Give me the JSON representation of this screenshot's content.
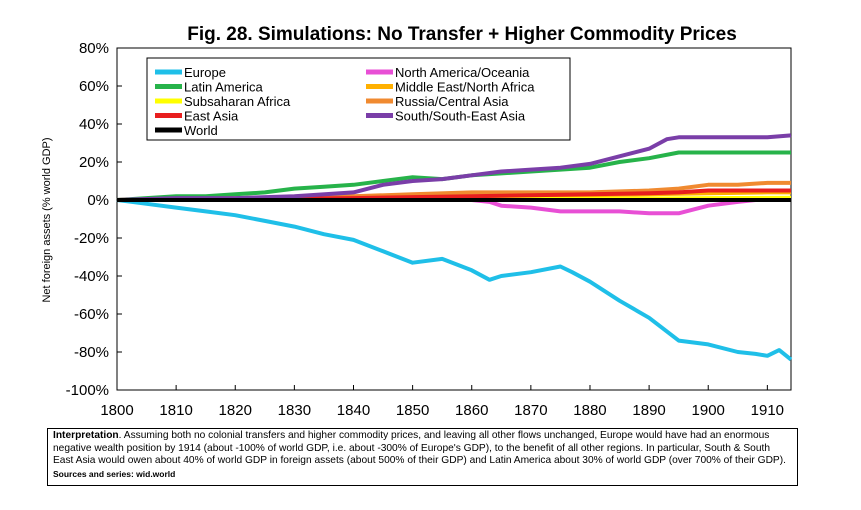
{
  "chart_data": {
    "type": "line",
    "title": "Fig. 28. Simulations: No Transfer + Higher Commodity Prices",
    "xlabel": "",
    "ylabel": "Net foreign assets (% world GDP)",
    "xlim": [
      1800,
      1914
    ],
    "ylim": [
      -100,
      80
    ],
    "x_ticks": [
      1800,
      1810,
      1820,
      1830,
      1840,
      1850,
      1860,
      1870,
      1880,
      1890,
      1900,
      1910
    ],
    "y_ticks": [
      80,
      60,
      40,
      20,
      0,
      -20,
      -40,
      -60,
      -80,
      -100
    ],
    "y_tick_labels": [
      "80%",
      "60%",
      "40%",
      "20%",
      "0%",
      "-20%",
      "-40%",
      "-60%",
      "-80%",
      "-100%"
    ],
    "grid": false,
    "legend": "top-left",
    "series": [
      {
        "name": "Europe",
        "color": "#1fbfe8",
        "x": [
          1800,
          1805,
          1810,
          1815,
          1820,
          1825,
          1830,
          1835,
          1840,
          1845,
          1850,
          1855,
          1860,
          1863,
          1865,
          1870,
          1875,
          1877,
          1880,
          1885,
          1890,
          1895,
          1900,
          1905,
          1908,
          1910,
          1912,
          1914
        ],
        "y": [
          0,
          -2,
          -4,
          -6,
          -8,
          -11,
          -14,
          -18,
          -21,
          -27,
          -33,
          -31,
          -37,
          -42,
          -40,
          -38,
          -35,
          -38,
          -43,
          -53,
          -62,
          -74,
          -76,
          -80,
          -81,
          -82,
          -79,
          -84
        ]
      },
      {
        "name": "North America/Oceania",
        "color": "#e84fd5",
        "x": [
          1800,
          1860,
          1863,
          1865,
          1870,
          1875,
          1880,
          1885,
          1890,
          1895,
          1900,
          1905,
          1908,
          1910,
          1914
        ],
        "y": [
          0,
          0,
          -1,
          -3,
          -4,
          -6,
          -6,
          -6,
          -7,
          -7,
          -3,
          -1,
          0,
          0,
          0
        ]
      },
      {
        "name": "Latin America",
        "color": "#27b34a",
        "x": [
          1800,
          1805,
          1810,
          1815,
          1820,
          1825,
          1830,
          1835,
          1840,
          1845,
          1850,
          1855,
          1860,
          1865,
          1870,
          1875,
          1880,
          1885,
          1890,
          1895,
          1900,
          1905,
          1910,
          1914
        ],
        "y": [
          0,
          1,
          2,
          2,
          3,
          4,
          6,
          7,
          8,
          10,
          12,
          11,
          13,
          14,
          15,
          16,
          17,
          20,
          22,
          25,
          25,
          25,
          25,
          25
        ]
      },
      {
        "name": "Middle East/North Africa",
        "color": "#ffb000",
        "x": [
          1800,
          1820,
          1840,
          1860,
          1870,
          1880,
          1890,
          1900,
          1910,
          1914
        ],
        "y": [
          0,
          0.5,
          1,
          2,
          2,
          2.5,
          3,
          3.5,
          4,
          4
        ]
      },
      {
        "name": "Subsaharan Africa",
        "color": "#ffff00",
        "x": [
          1800,
          1850,
          1880,
          1900,
          1914
        ],
        "y": [
          0,
          0.3,
          0.6,
          1,
          1.2
        ]
      },
      {
        "name": "Russia/Central Asia",
        "color": "#f08a30",
        "x": [
          1800,
          1820,
          1840,
          1850,
          1860,
          1870,
          1880,
          1890,
          1895,
          1900,
          1905,
          1910,
          1914
        ],
        "y": [
          0,
          1,
          2,
          3,
          4,
          4,
          4,
          5,
          6,
          8,
          8,
          9,
          9
        ]
      },
      {
        "name": "East Asia",
        "color": "#e81e1e",
        "x": [
          1800,
          1820,
          1840,
          1860,
          1870,
          1880,
          1890,
          1895,
          1900,
          1905,
          1910,
          1914
        ],
        "y": [
          0,
          0.5,
          1,
          2,
          2.5,
          3,
          3.5,
          4,
          5,
          5,
          5,
          5
        ]
      },
      {
        "name": "South/South-East Asia",
        "color": "#7a3ea8",
        "x": [
          1800,
          1810,
          1820,
          1830,
          1840,
          1845,
          1850,
          1855,
          1860,
          1865,
          1870,
          1875,
          1880,
          1885,
          1890,
          1893,
          1895,
          1900,
          1905,
          1910,
          1914
        ],
        "y": [
          0,
          1,
          1,
          2,
          4,
          8,
          10,
          11,
          13,
          15,
          16,
          17,
          19,
          23,
          27,
          32,
          33,
          33,
          33,
          33,
          34
        ]
      },
      {
        "name": "World",
        "color": "#000000",
        "x": [
          1800,
          1914
        ],
        "y": [
          0,
          0
        ]
      }
    ]
  },
  "note": {
    "label": "Interpretation",
    "text": ". Assuming both no colonial transfers and higher commodity prices, and leaving all other flows unchanged, Europe would have had an enormous negative wealth position by 1914 (about -100% of world GDP, i.e. about -300% of Europe's GDP), to the benefit of all other regions. In particular, South & South East Asia would owen about 40% of world GDP in foreign assets (about 500% of their GDP) and Latin America about 30% of world GDP (over 700% of their GDP). ",
    "sources": "Sources and series: wid.world"
  }
}
